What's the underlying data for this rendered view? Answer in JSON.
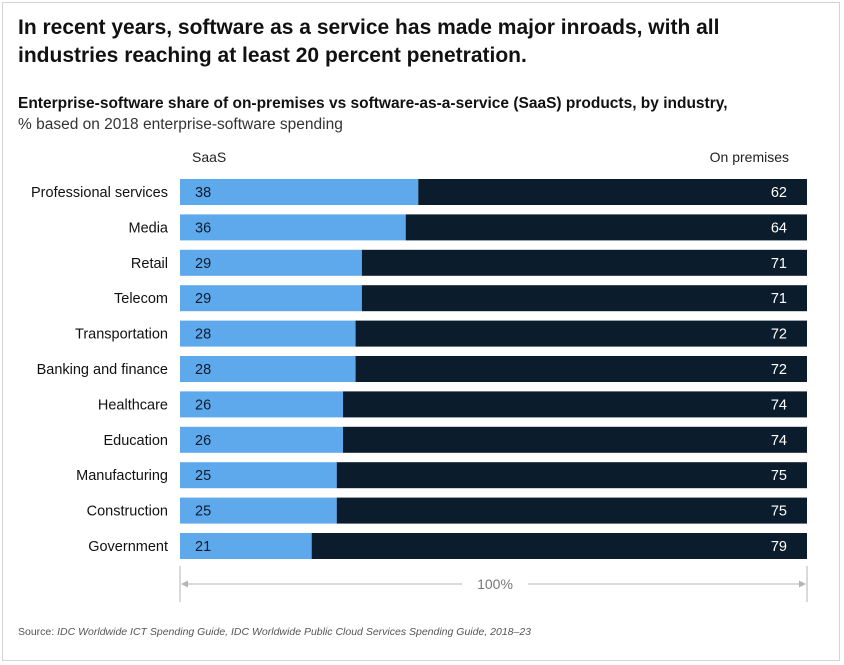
{
  "headline": "In recent years, software as a service has made major inroads, with all industries reaching at least 20 percent penetration.",
  "subtitle": {
    "bold": "Enterprise-software share of on-premises vs software-as-a-service (SaaS) products, by industry,",
    "normal": "% based on 2018 enterprise-software spending"
  },
  "legend": {
    "saas": "SaaS",
    "on_premises": "On premises"
  },
  "scale_label": "100%",
  "source": {
    "prefix": "Source: ",
    "text": "IDC Worldwide ICT Spending Guide, IDC Worldwide Public Cloud Services Spending Guide, 2018–23"
  },
  "colors": {
    "saas": "#5ea8ec",
    "on_premises": "#0b1c2c",
    "saas_label": "#0b1c2c",
    "on_premises_label": "#ffffff",
    "scale": "#b5b5b5"
  },
  "chart_data": {
    "type": "bar",
    "orientation": "horizontal",
    "stacked": true,
    "categories": [
      "Professional services",
      "Media",
      "Retail",
      "Telecom",
      "Transportation",
      "Banking and finance",
      "Healthcare",
      "Education",
      "Manufacturing",
      "Construction",
      "Government"
    ],
    "series": [
      {
        "name": "SaaS",
        "values": [
          38,
          36,
          29,
          29,
          28,
          28,
          26,
          26,
          25,
          25,
          21
        ]
      },
      {
        "name": "On premises",
        "values": [
          62,
          64,
          71,
          71,
          72,
          72,
          74,
          74,
          75,
          75,
          79
        ]
      }
    ],
    "xlim": [
      0,
      100
    ]
  }
}
